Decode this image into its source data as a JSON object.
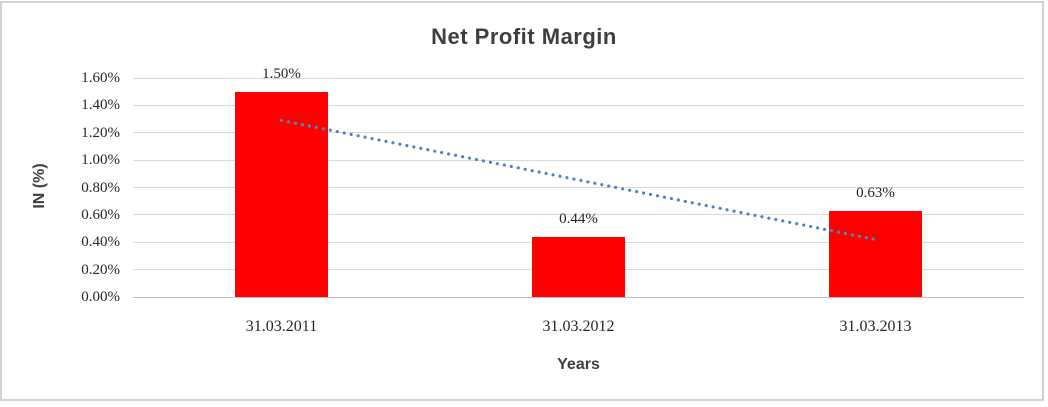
{
  "chart_data": {
    "type": "bar",
    "title": "Net Profit Margin",
    "xlabel": "Years",
    "ylabel": "IN (%)",
    "categories": [
      "31.03.2011",
      "31.03.2012",
      "31.03.2013"
    ],
    "values": [
      1.5,
      0.44,
      0.63
    ],
    "data_labels": [
      "1.50%",
      "0.44%",
      "0.63%"
    ],
    "ylim": [
      0,
      1.6
    ],
    "ytick_step": 0.2,
    "ytick_labels": [
      "0.00%",
      "0.20%",
      "0.40%",
      "0.60%",
      "0.80%",
      "1.00%",
      "1.20%",
      "1.40%",
      "1.60%"
    ],
    "grid": true,
    "legend": "none",
    "bar_color": "#ff0000",
    "gridline_color": "#d9d9d9",
    "frame_color": "#d2d2d2",
    "title_color": "#3f3f3f",
    "tick_label_color": "#262626",
    "trendline": {
      "type": "linear",
      "style": "dotted",
      "color": "#4a86c8",
      "start_value": 1.29,
      "end_value": 0.42
    }
  }
}
